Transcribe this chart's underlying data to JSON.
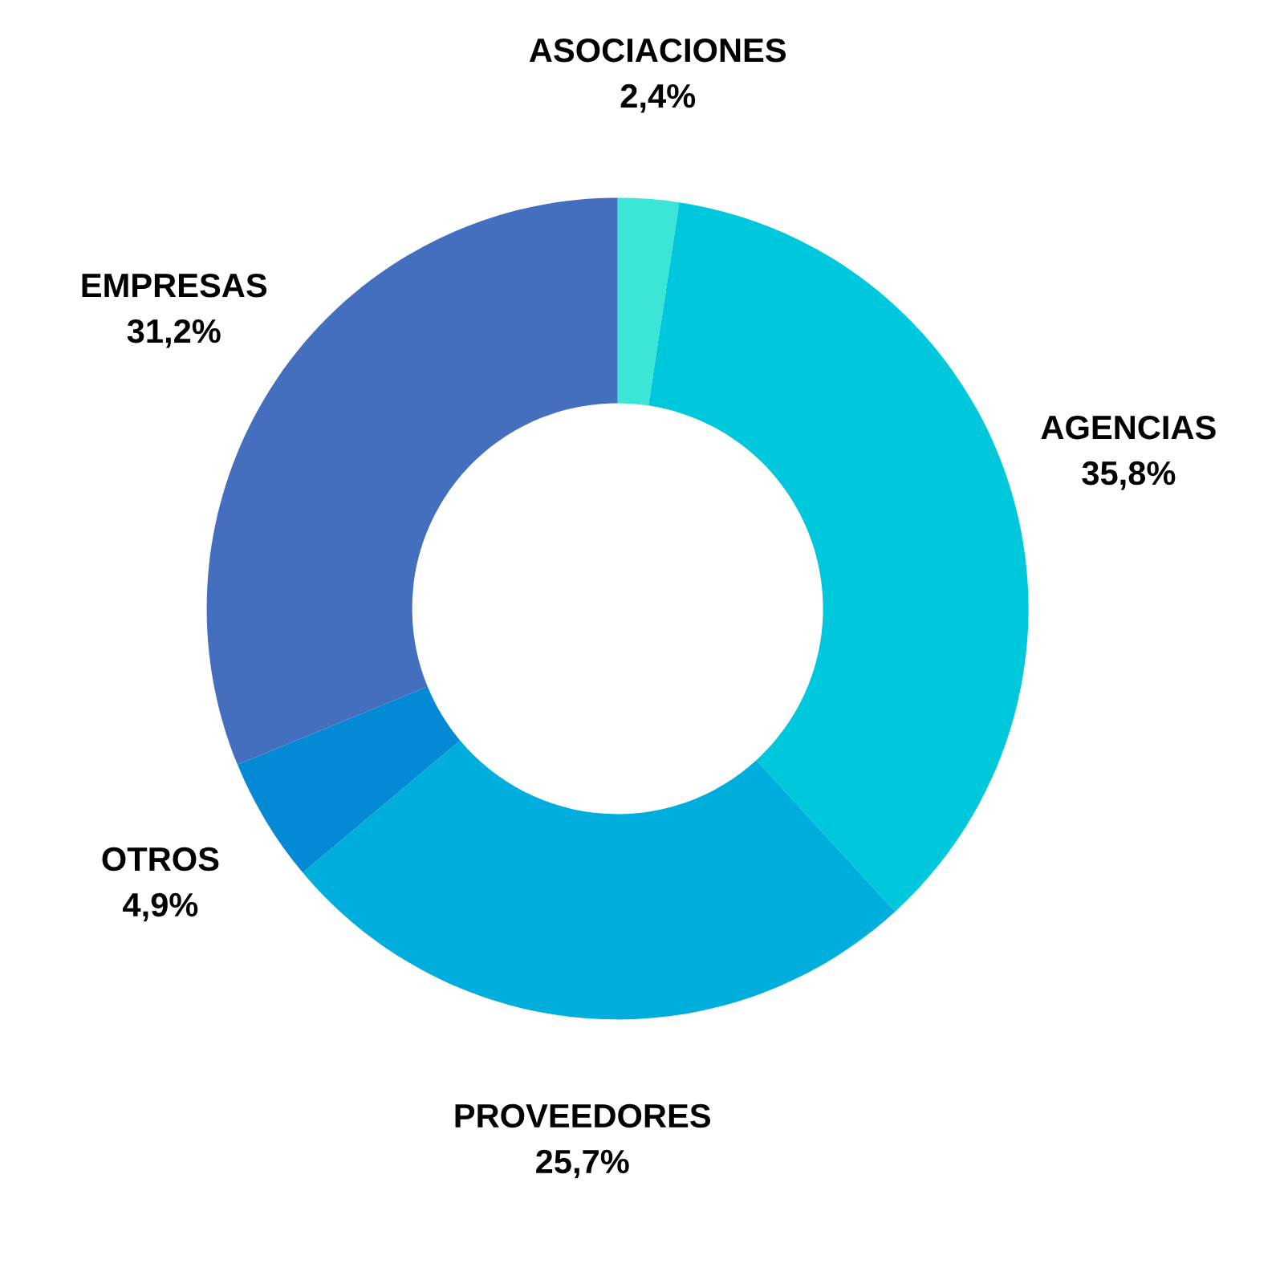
{
  "chart_data": {
    "type": "donut",
    "categories": [
      "ASOCIACIONES",
      "AGENCIAS",
      "PROVEEDORES",
      "OTROS",
      "EMPRESAS"
    ],
    "values": [
      2.4,
      35.8,
      25.7,
      4.9,
      31.2
    ],
    "value_labels": [
      "2,4%",
      "35,8%",
      "25,7%",
      "4,9%",
      "31,2%"
    ],
    "colors": [
      "#3ce6d6",
      "#00c8dc",
      "#00aedd",
      "#0489d4",
      "#446fbf"
    ],
    "legend": false
  }
}
